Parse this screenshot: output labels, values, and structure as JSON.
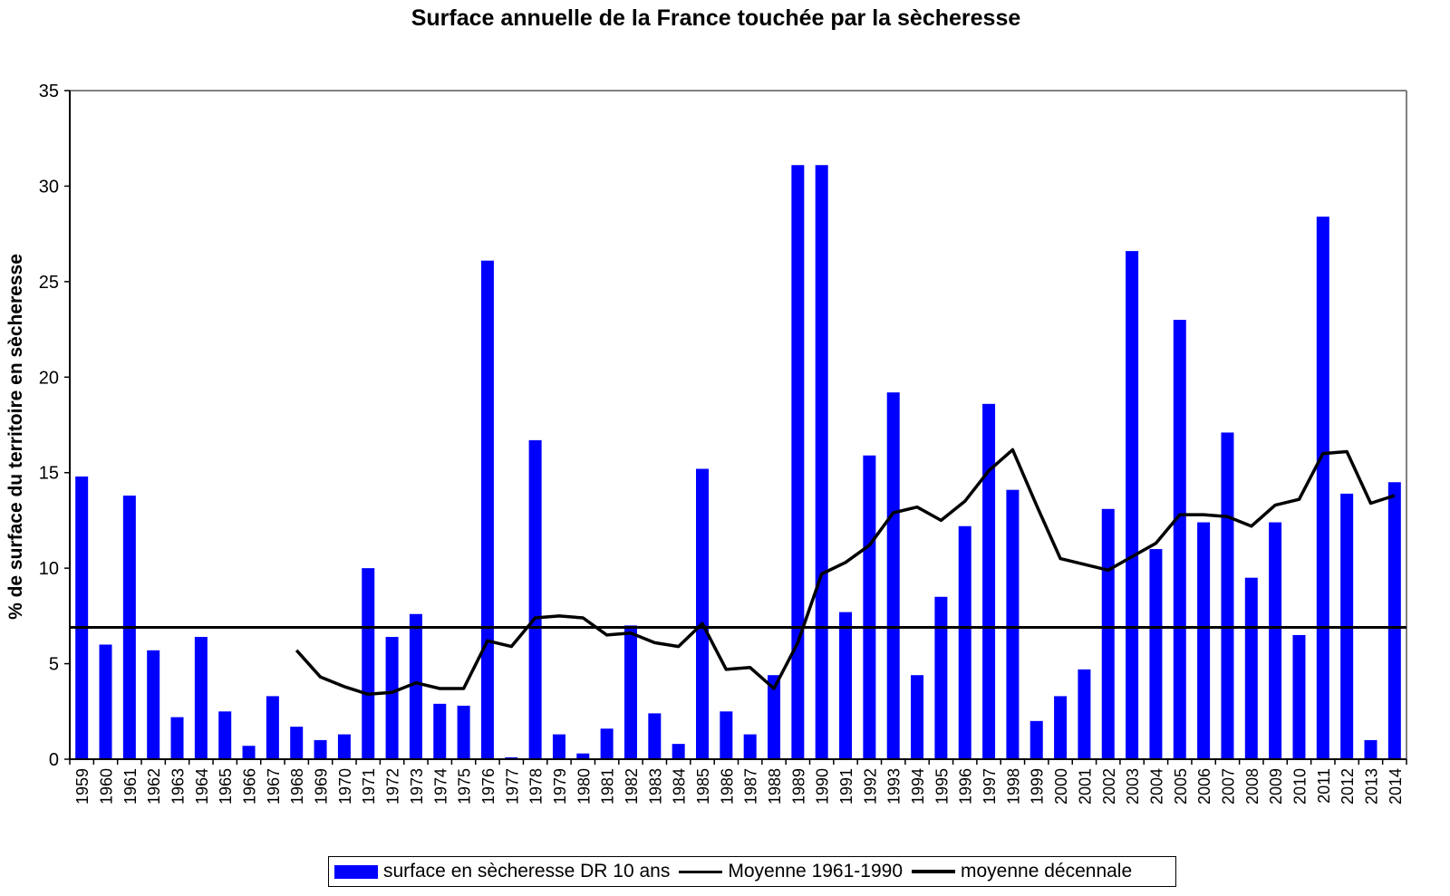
{
  "chart_data": {
    "type": "bar",
    "title": "Surface annuelle de la France touchée par la sècheresse",
    "xlabel": "",
    "ylabel": "% de surface du territoire en sècheresse",
    "ylim": [
      0,
      35
    ],
    "yticks": [
      0,
      5,
      10,
      15,
      20,
      25,
      30,
      35
    ],
    "grid": false,
    "legend_position": "bottom",
    "categories": [
      "1959",
      "1960",
      "1961",
      "1962",
      "1963",
      "1964",
      "1965",
      "1966",
      "1967",
      "1968",
      "1969",
      "1970",
      "1971",
      "1972",
      "1973",
      "1974",
      "1975",
      "1976",
      "1977",
      "1978",
      "1979",
      "1980",
      "1981",
      "1982",
      "1983",
      "1984",
      "1985",
      "1986",
      "1987",
      "1988",
      "1989",
      "1990",
      "1991",
      "1992",
      "1993",
      "1994",
      "1995",
      "1996",
      "1997",
      "1998",
      "1999",
      "2000",
      "2001",
      "2002",
      "2003",
      "2004",
      "2005",
      "2006",
      "2007",
      "2008",
      "2009",
      "2010",
      "2011",
      "2012",
      "2013",
      "2014"
    ],
    "series": [
      {
        "name": "surface en sècheresse DR 10 ans",
        "kind": "bar",
        "color": "#0000ff",
        "values": [
          14.8,
          6.0,
          13.8,
          5.7,
          2.2,
          6.4,
          2.5,
          0.7,
          3.3,
          1.7,
          1.0,
          1.3,
          10.0,
          6.4,
          7.6,
          2.9,
          2.8,
          26.1,
          0.1,
          16.7,
          1.3,
          0.3,
          1.6,
          7.0,
          2.4,
          0.8,
          15.2,
          2.5,
          1.3,
          4.4,
          31.1,
          31.1,
          7.7,
          15.9,
          19.2,
          4.4,
          8.5,
          12.2,
          18.6,
          14.1,
          2.0,
          3.3,
          4.7,
          13.1,
          26.6,
          11.0,
          23.0,
          12.4,
          17.1,
          9.5,
          12.4,
          6.5,
          28.4,
          13.9,
          1.0,
          14.5
        ]
      },
      {
        "name": "Moyenne 1961-1990",
        "kind": "hline",
        "color": "#000000",
        "value": 6.9
      },
      {
        "name": "moyenne décennale",
        "kind": "line",
        "color": "#000000",
        "values": [
          null,
          null,
          null,
          null,
          null,
          null,
          null,
          null,
          null,
          5.7,
          4.3,
          3.8,
          3.4,
          3.5,
          4.0,
          3.7,
          3.7,
          6.2,
          5.9,
          7.4,
          7.5,
          7.4,
          6.5,
          6.6,
          6.1,
          5.9,
          7.1,
          4.7,
          4.8,
          3.7,
          6.1,
          9.7,
          10.3,
          11.2,
          12.9,
          13.2,
          12.5,
          13.5,
          15.1,
          16.2,
          13.3,
          10.5,
          10.2,
          9.9,
          10.6,
          11.3,
          12.8,
          12.8,
          12.7,
          12.2,
          13.3,
          13.6,
          16.0,
          16.1,
          13.4,
          13.8
        ]
      }
    ]
  }
}
